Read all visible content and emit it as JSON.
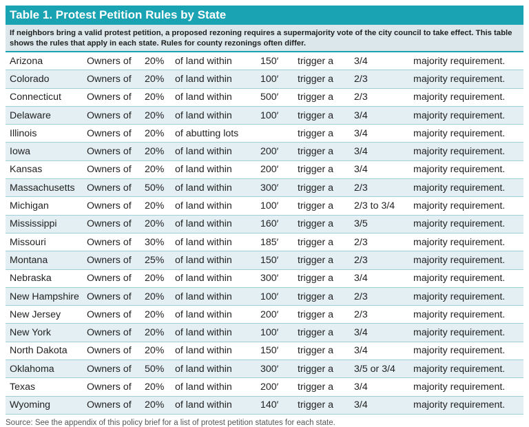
{
  "title": "Table 1. Protest Petition Rules by State",
  "description": "If neighbors bring a valid protest petition, a proposed rezoning requires a supermajority vote of the city council to take effect. This table shows the rules that apply in each state. Rules for county rezonings often differ.",
  "rows": [
    [
      "Arizona",
      "Owners of",
      "20%",
      "of land within",
      "150′",
      "trigger a",
      "3/4",
      "majority requirement."
    ],
    [
      "Colorado",
      "Owners of",
      "20%",
      "of land within",
      "100′",
      "trigger a",
      "2/3",
      "majority requirement."
    ],
    [
      "Connecticut",
      "Owners of",
      "20%",
      "of land within",
      "500′",
      "trigger a",
      "2/3",
      "majority requirement."
    ],
    [
      "Delaware",
      "Owners of",
      "20%",
      "of land within",
      "100′",
      "trigger a",
      "3/4",
      "majority requirement."
    ],
    [
      "Illinois",
      "Owners of",
      "20%",
      "of abutting lots",
      "",
      "trigger a",
      "3/4",
      "majority requirement."
    ],
    [
      "Iowa",
      "Owners of",
      "20%",
      "of land within",
      "200′",
      "trigger a",
      "3/4",
      "majority requirement."
    ],
    [
      "Kansas",
      "Owners of",
      "20%",
      "of land within",
      "200′",
      "trigger a",
      "3/4",
      "majority requirement."
    ],
    [
      "Massachusetts",
      "Owners of",
      "50%",
      "of land within",
      "300′",
      "trigger a",
      "2/3",
      "majority requirement."
    ],
    [
      "Michigan",
      "Owners of",
      "20%",
      "of land within",
      "100′",
      "trigger a",
      "2/3 to 3/4",
      "majority requirement."
    ],
    [
      "Mississippi",
      "Owners of",
      "20%",
      "of land within",
      "160′",
      "trigger a",
      "3/5",
      "majority requirement."
    ],
    [
      "Missouri",
      "Owners of",
      "30%",
      "of land within",
      "185′",
      "trigger a",
      "2/3",
      "majority requirement."
    ],
    [
      "Montana",
      "Owners of",
      "25%",
      "of land within",
      "150′",
      "trigger a",
      "2/3",
      "majority requirement."
    ],
    [
      "Nebraska",
      "Owners of",
      "20%",
      "of land within",
      "300′",
      "trigger a",
      "3/4",
      "majority requirement."
    ],
    [
      "New Hampshire",
      "Owners of",
      "20%",
      "of land within",
      "100′",
      "trigger a",
      "2/3",
      "majority requirement."
    ],
    [
      "New Jersey",
      "Owners of",
      "20%",
      "of land within",
      "200′",
      "trigger a",
      "2/3",
      "majority requirement."
    ],
    [
      "New York",
      "Owners of",
      "20%",
      "of land within",
      "100′",
      "trigger a",
      "3/4",
      "majority requirement."
    ],
    [
      "North Dakota",
      "Owners of",
      "20%",
      "of land within",
      "150′",
      "trigger a",
      "3/4",
      "majority requirement."
    ],
    [
      "Oklahoma",
      "Owners of",
      "50%",
      "of land within",
      "300′",
      "trigger a",
      "3/5 or 3/4",
      "majority requirement."
    ],
    [
      "Texas",
      "Owners of",
      "20%",
      "of land within",
      "200′",
      "trigger a",
      "3/4",
      "majority requirement."
    ],
    [
      "Wyoming",
      "Owners of",
      "20%",
      "of land within",
      "140′",
      "trigger a",
      "3/4",
      "majority requirement."
    ]
  ],
  "source": "Source: See the appendix of this policy brief for a list of protest petition statutes for each state.",
  "colors": {
    "header": "#1aa3b3",
    "description_bg": "#dbe7eb",
    "alt_row": "#e4eff3"
  }
}
